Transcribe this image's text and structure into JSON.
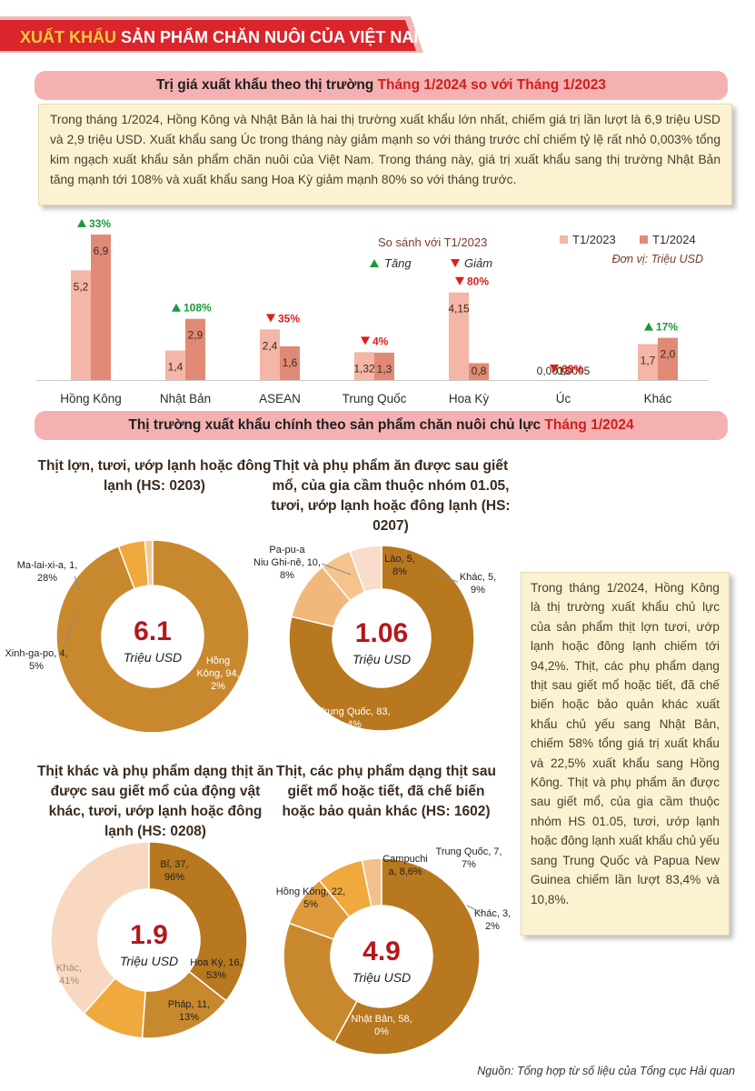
{
  "header": {
    "title_highlight": "XUẤT KHẨU",
    "title_rest": "SẢN PHẨM CHĂN NUÔI CỦA VIỆT NAM"
  },
  "section1": {
    "title_main": "Trị giá xuất khẩu theo thị trường",
    "title_highlight": "Tháng 1/2024 so với Tháng 1/2023"
  },
  "intro_text": "Trong tháng 1/2024, Hồng Kông và Nhật Bản là hai thị trường xuất khẩu lớn nhất, chiếm giá trị lần lượt là 6,9 triệu USD và 2,9 triệu USD. Xuất khẩu sang Úc trong tháng này giảm mạnh so với tháng trước chỉ chiếm tỷ lệ rất nhỏ 0,003% tổng kim ngạch xuất khẩu sản phẩm chăn nuôi của Việt Nam. Trong tháng này, giá trị xuất khẩu sang thị trường Nhật Bản tăng mạnh tới 108% và xuất khẩu sang Hoa Kỳ giảm mạnh 80% so với tháng trước.",
  "section2": {
    "title_main": "Thị trường xuất khẩu chính theo sản phẩm chăn nuôi chủ lực",
    "title_highlight": "Tháng 1/2024"
  },
  "side_text": "Trong tháng 1/2024, Hồng Kông là thị trường xuất khẩu chủ lực của sản phẩm thịt lợn tươi, ướp lạnh hoặc đông lạnh chiếm tới 94,2%. Thịt, các phụ phẩm dạng thịt sau giết mổ hoặc tiết, đã chế biến hoặc bảo quản khác xuất khẩu chủ yếu sang Nhật Bản, chiếm 58% tổng giá trị xuất khẩu và 22,5% xuất khẩu sang Hồng Kông. Thịt và phụ phẩm ăn được sau giết mổ, của gia cầm thuộc nhóm HS 01.05, tươi, ướp lạnh hoặc đông lạnh xuất khẩu chủ yếu sang Trung Quốc và Papua New Guinea chiếm lần lượt 83,4% và 10,8%.",
  "source": "Nguồn: Tổng hợp từ số liệu của Tổng cục Hải quan",
  "chart_data": [
    {
      "type": "bar",
      "compare_title": "So sánh với T1/2023",
      "increase_label": "Tăng",
      "decrease_label": "Giảm",
      "unit_label": "Đơn vị: Triệu USD",
      "categories": [
        "Hồng Kông",
        "Nhật Bản",
        "ASEAN",
        "Trung Quốc",
        "Hoa Kỳ",
        "Úc",
        "Khác"
      ],
      "series": [
        {
          "name": "T1/2023",
          "color": "#f4b6a6",
          "values": [
            5.2,
            1.4,
            2.4,
            1.32,
            4.15,
            0.0013,
            1.7
          ],
          "labels": [
            "5,2",
            "1,4",
            "2,4",
            "1,32",
            "4,15",
            "0,0013",
            "1,7"
          ]
        },
        {
          "name": "T1/2024",
          "color": "#e08a76",
          "values": [
            6.9,
            2.9,
            1.6,
            1.3,
            0.8,
            0.0005,
            2.0
          ],
          "labels": [
            "6,9",
            "2,9",
            "1,6",
            "1,3",
            "0,8",
            "0,0005",
            "2,0"
          ]
        }
      ],
      "changes": [
        {
          "dir": "up",
          "label": "33%"
        },
        {
          "dir": "up",
          "label": "108%"
        },
        {
          "dir": "down",
          "label": "35%"
        },
        {
          "dir": "down",
          "label": "4%"
        },
        {
          "dir": "down",
          "label": "80%"
        },
        {
          "dir": "down",
          "label": "63%"
        },
        {
          "dir": "up",
          "label": "17%"
        }
      ],
      "colors": {
        "up": "#1a9a3a",
        "down": "#e01b1b"
      }
    },
    {
      "type": "pie",
      "variant": "donut",
      "title": "Thịt lợn, tươi, ướp lạnh hoặc đông lạnh (HS: 0203)",
      "center_value": "6.1",
      "center_unit": "Triệu USD",
      "slices": [
        {
          "label": "Hồng Kông, 94,2%",
          "value": 94.2,
          "color": "#c8892e"
        },
        {
          "label": "Xinh-ga-po, 4,5%",
          "value": 4.5,
          "color": "#f0a93c"
        },
        {
          "label": "Ma-lai-xi-a, 1,28%",
          "value": 1.28,
          "color": "#f2c79a"
        }
      ]
    },
    {
      "type": "pie",
      "variant": "donut",
      "title": "Thịt và phụ phẩm ăn được sau giết mổ, của gia cầm thuộc nhóm 01.05, tươi, ướp lạnh hoặc đông lạnh (HS: 0207)",
      "center_value": "1.06",
      "center_unit": "Triệu USD",
      "slices": [
        {
          "label": "Trung Quốc, 83,4%",
          "value": 83.4,
          "color": "#b7781f"
        },
        {
          "label": "Pa-pu-a Niu Ghi-nê, 10,8%",
          "value": 10.8,
          "color": "#f2b77a"
        },
        {
          "label": "Lào, 5,8%",
          "value": 5.8,
          "color": "#f4c48c"
        },
        {
          "label": "Khác, 5,9%",
          "value": 5.9,
          "color": "#f9dcca"
        }
      ]
    },
    {
      "type": "pie",
      "variant": "donut",
      "title": "Thịt khác và phụ phẩm dạng thịt ăn được sau giết mổ của động vật khác, tươi, ướp lạnh hoặc đông lạnh (HS: 0208)",
      "center_value": "1.9",
      "center_unit": "Triệu USD",
      "slices": [
        {
          "label": "Bỉ, 37,96%",
          "value": 37.96,
          "color": "#b7781f"
        },
        {
          "label": "Hoa Kỳ, 16,53%",
          "value": 16.53,
          "color": "#c8892e"
        },
        {
          "label": "Pháp, 11,13%",
          "value": 11.13,
          "color": "#f0a93c"
        },
        {
          "label": "Khác, 41%",
          "value": 41,
          "color": "#f9d8c2"
        }
      ]
    },
    {
      "type": "pie",
      "variant": "donut",
      "title": "Thịt, các phụ phẩm dạng thịt sau giết mổ hoặc tiết, đã chế biến hoặc bảo quản khác (HS: 1602)",
      "center_value": "4.9",
      "center_unit": "Triệu USD",
      "slices": [
        {
          "label": "Nhật Bản, 58,0%",
          "value": 58.0,
          "color": "#b7781f"
        },
        {
          "label": "Hồng Kông, 22,5%",
          "value": 22.5,
          "color": "#c8892e"
        },
        {
          "label": "Campuchia, 8,6%",
          "value": 8.6,
          "color": "#e09a3c"
        },
        {
          "label": "Trung Quốc, 7,7%",
          "value": 7.7,
          "color": "#f0a93c"
        },
        {
          "label": "Khác, 3,2%",
          "value": 3.2,
          "color": "#f2c08c"
        }
      ]
    }
  ]
}
